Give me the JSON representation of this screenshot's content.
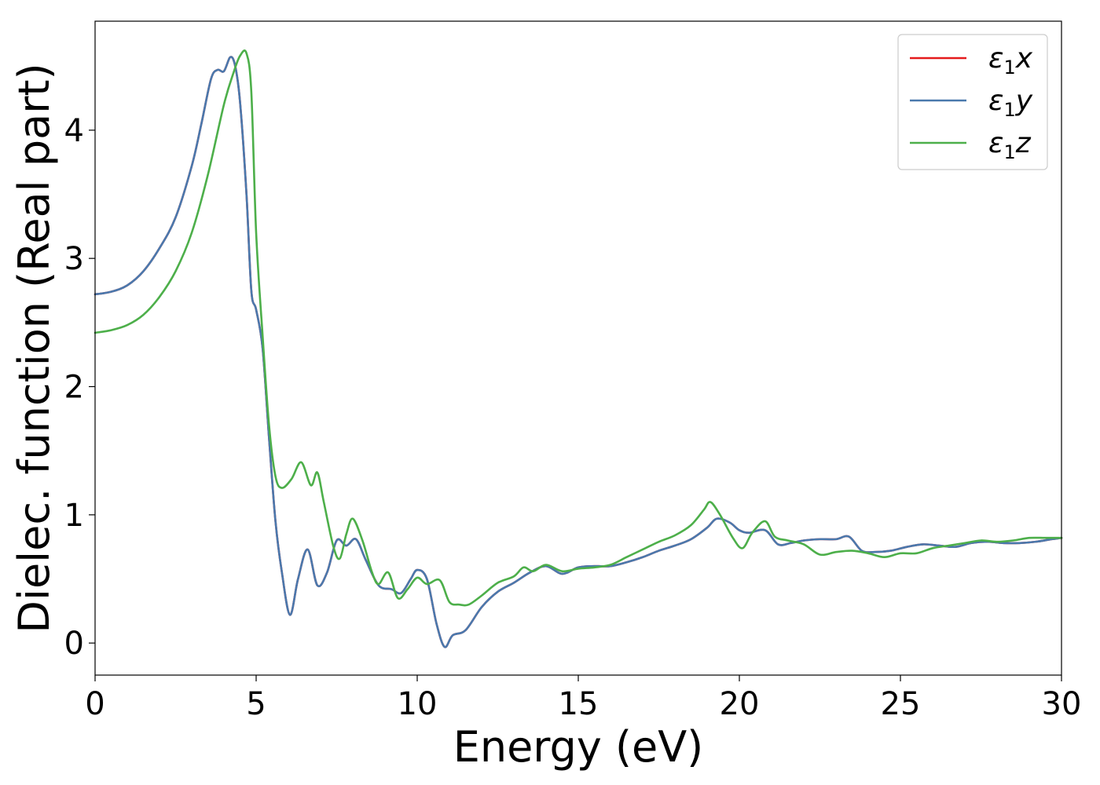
{
  "chart_data": {
    "type": "line",
    "xlabel": "Energy (eV)",
    "ylabel": "Dielec. function (Real part)",
    "xlim": [
      0,
      30
    ],
    "ylim": [
      -0.25,
      4.85
    ],
    "xticks": [
      0,
      5,
      10,
      15,
      20,
      25,
      30
    ],
    "yticks": [
      0,
      1,
      2,
      3,
      4
    ],
    "grid": false,
    "legend_position": "top-right",
    "series": [
      {
        "name": "ε₁x",
        "legend_main": "ε",
        "legend_sub": "1",
        "legend_var": "x",
        "color": "#e41a1c",
        "x": [
          0,
          0.5,
          1,
          1.5,
          2,
          2.5,
          3,
          3.3,
          3.6,
          3.8,
          4.0,
          4.2,
          4.35,
          4.5,
          4.7,
          4.85,
          5.0,
          5.2,
          5.4,
          5.6,
          5.8,
          6.05,
          6.3,
          6.6,
          6.9,
          7.2,
          7.5,
          7.8,
          8.1,
          8.4,
          8.8,
          9.2,
          9.5,
          9.8,
          10.0,
          10.3,
          10.6,
          10.85,
          11.1,
          11.5,
          12.0,
          12.5,
          13.0,
          13.5,
          14.0,
          14.5,
          15.0,
          15.5,
          16.0,
          16.5,
          17.0,
          17.5,
          18.0,
          18.5,
          19.0,
          19.3,
          19.7,
          20.0,
          20.3,
          20.8,
          21.2,
          21.6,
          22.0,
          22.5,
          23.0,
          23.4,
          23.8,
          24.2,
          24.7,
          25.2,
          25.7,
          26.2,
          26.7,
          27.2,
          27.7,
          28.2,
          28.7,
          29.2,
          29.7,
          30.0
        ],
        "y": [
          2.72,
          2.74,
          2.79,
          2.9,
          3.08,
          3.32,
          3.72,
          4.05,
          4.4,
          4.47,
          4.46,
          4.57,
          4.5,
          4.22,
          3.5,
          2.75,
          2.6,
          2.3,
          1.6,
          0.95,
          0.55,
          0.22,
          0.5,
          0.73,
          0.45,
          0.55,
          0.8,
          0.76,
          0.81,
          0.65,
          0.45,
          0.42,
          0.39,
          0.5,
          0.57,
          0.5,
          0.15,
          -0.03,
          0.06,
          0.1,
          0.28,
          0.4,
          0.47,
          0.55,
          0.6,
          0.54,
          0.59,
          0.6,
          0.6,
          0.63,
          0.67,
          0.72,
          0.76,
          0.81,
          0.9,
          0.97,
          0.94,
          0.88,
          0.86,
          0.88,
          0.77,
          0.78,
          0.8,
          0.81,
          0.81,
          0.83,
          0.72,
          0.71,
          0.72,
          0.75,
          0.77,
          0.76,
          0.75,
          0.78,
          0.79,
          0.78,
          0.78,
          0.79,
          0.81,
          0.82
        ]
      },
      {
        "name": "ε₁y",
        "legend_main": "ε",
        "legend_sub": "1",
        "legend_var": "y",
        "color": "#4a79ad",
        "x": [
          0,
          0.5,
          1,
          1.5,
          2,
          2.5,
          3,
          3.3,
          3.6,
          3.8,
          4.0,
          4.2,
          4.35,
          4.5,
          4.7,
          4.85,
          5.0,
          5.2,
          5.4,
          5.6,
          5.8,
          6.05,
          6.3,
          6.6,
          6.9,
          7.2,
          7.5,
          7.8,
          8.1,
          8.4,
          8.8,
          9.2,
          9.5,
          9.8,
          10.0,
          10.3,
          10.6,
          10.85,
          11.1,
          11.5,
          12.0,
          12.5,
          13.0,
          13.5,
          14.0,
          14.5,
          15.0,
          15.5,
          16.0,
          16.5,
          17.0,
          17.5,
          18.0,
          18.5,
          19.0,
          19.3,
          19.7,
          20.0,
          20.3,
          20.8,
          21.2,
          21.6,
          22.0,
          22.5,
          23.0,
          23.4,
          23.8,
          24.2,
          24.7,
          25.2,
          25.7,
          26.2,
          26.7,
          27.2,
          27.7,
          28.2,
          28.7,
          29.2,
          29.7,
          30.0
        ],
        "y": [
          2.72,
          2.74,
          2.79,
          2.9,
          3.08,
          3.32,
          3.72,
          4.05,
          4.4,
          4.47,
          4.46,
          4.57,
          4.5,
          4.22,
          3.5,
          2.75,
          2.6,
          2.3,
          1.6,
          0.95,
          0.55,
          0.22,
          0.5,
          0.73,
          0.45,
          0.55,
          0.8,
          0.76,
          0.81,
          0.65,
          0.45,
          0.42,
          0.39,
          0.5,
          0.57,
          0.5,
          0.15,
          -0.03,
          0.06,
          0.1,
          0.28,
          0.4,
          0.47,
          0.55,
          0.6,
          0.54,
          0.59,
          0.6,
          0.6,
          0.63,
          0.67,
          0.72,
          0.76,
          0.81,
          0.9,
          0.97,
          0.94,
          0.88,
          0.86,
          0.88,
          0.77,
          0.78,
          0.8,
          0.81,
          0.81,
          0.83,
          0.72,
          0.71,
          0.72,
          0.75,
          0.77,
          0.76,
          0.75,
          0.78,
          0.79,
          0.78,
          0.78,
          0.79,
          0.81,
          0.82
        ]
      },
      {
        "name": "ε₁z",
        "legend_main": "ε",
        "legend_sub": "1",
        "legend_var": "z",
        "color": "#4daf4a",
        "x": [
          0,
          0.5,
          1,
          1.5,
          2,
          2.5,
          3,
          3.5,
          4.0,
          4.3,
          4.5,
          4.7,
          4.85,
          5.0,
          5.2,
          5.4,
          5.6,
          5.8,
          6.1,
          6.4,
          6.7,
          6.9,
          7.1,
          7.4,
          7.6,
          7.8,
          8.0,
          8.3,
          8.6,
          8.8,
          9.1,
          9.4,
          9.7,
          10.0,
          10.3,
          10.7,
          11.0,
          11.3,
          11.6,
          12.0,
          12.5,
          13.0,
          13.3,
          13.6,
          14.0,
          14.5,
          15.0,
          15.5,
          16.0,
          16.5,
          17.0,
          17.5,
          18.0,
          18.5,
          18.9,
          19.1,
          19.4,
          19.8,
          20.1,
          20.4,
          20.8,
          21.1,
          21.5,
          22.0,
          22.5,
          23.0,
          23.5,
          24.0,
          24.5,
          25.0,
          25.5,
          26.0,
          26.5,
          27.0,
          27.5,
          28.0,
          28.5,
          29.0,
          29.5,
          30.0
        ],
        "y": [
          2.42,
          2.44,
          2.48,
          2.56,
          2.7,
          2.9,
          3.2,
          3.65,
          4.2,
          4.45,
          4.58,
          4.6,
          4.3,
          3.2,
          2.4,
          1.7,
          1.3,
          1.21,
          1.28,
          1.41,
          1.23,
          1.33,
          1.1,
          0.75,
          0.66,
          0.85,
          0.97,
          0.8,
          0.55,
          0.46,
          0.55,
          0.35,
          0.42,
          0.51,
          0.46,
          0.49,
          0.32,
          0.3,
          0.3,
          0.37,
          0.47,
          0.52,
          0.59,
          0.56,
          0.61,
          0.56,
          0.58,
          0.59,
          0.61,
          0.67,
          0.73,
          0.79,
          0.84,
          0.92,
          1.04,
          1.1,
          1.0,
          0.82,
          0.74,
          0.86,
          0.95,
          0.83,
          0.8,
          0.77,
          0.69,
          0.71,
          0.72,
          0.7,
          0.67,
          0.7,
          0.7,
          0.74,
          0.76,
          0.78,
          0.8,
          0.79,
          0.8,
          0.82,
          0.82,
          0.82
        ]
      }
    ]
  }
}
